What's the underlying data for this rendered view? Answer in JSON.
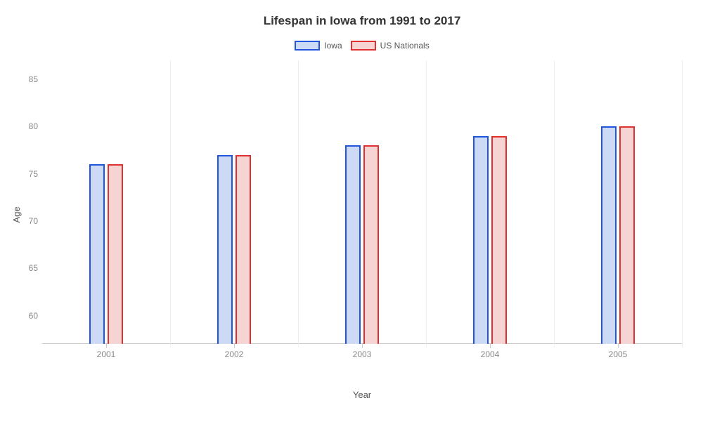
{
  "chart": {
    "type": "bar",
    "title": "Lifespan in Iowa from 1991 to 2017",
    "title_fontsize": 17,
    "title_color": "#333333",
    "xlabel": "Year",
    "ylabel": "Age",
    "label_fontsize": 13,
    "label_color": "#555555",
    "background_color": "#ffffff",
    "grid_color": "#eeeeee",
    "axis_line_color": "#cccccc",
    "tick_color": "#888888",
    "tick_fontsize": 12,
    "categories": [
      "2001",
      "2002",
      "2003",
      "2004",
      "2005"
    ],
    "series": [
      {
        "name": "Iowa",
        "values": [
          76,
          77,
          78,
          79,
          80
        ],
        "border_color": "#2255dd",
        "fill_color": "#cddaf6"
      },
      {
        "name": "US Nationals",
        "values": [
          76,
          77,
          78,
          79,
          80
        ],
        "border_color": "#e03030",
        "fill_color": "#f7d4d4"
      }
    ],
    "ylim": [
      57,
      87
    ],
    "yticks": [
      60,
      65,
      70,
      75,
      80,
      85
    ],
    "bar_width_ratio": 0.12,
    "bar_gap_ratio": 0.02,
    "bar_border_width": 2,
    "legend_swatch_width": 36,
    "legend_swatch_height": 14
  }
}
